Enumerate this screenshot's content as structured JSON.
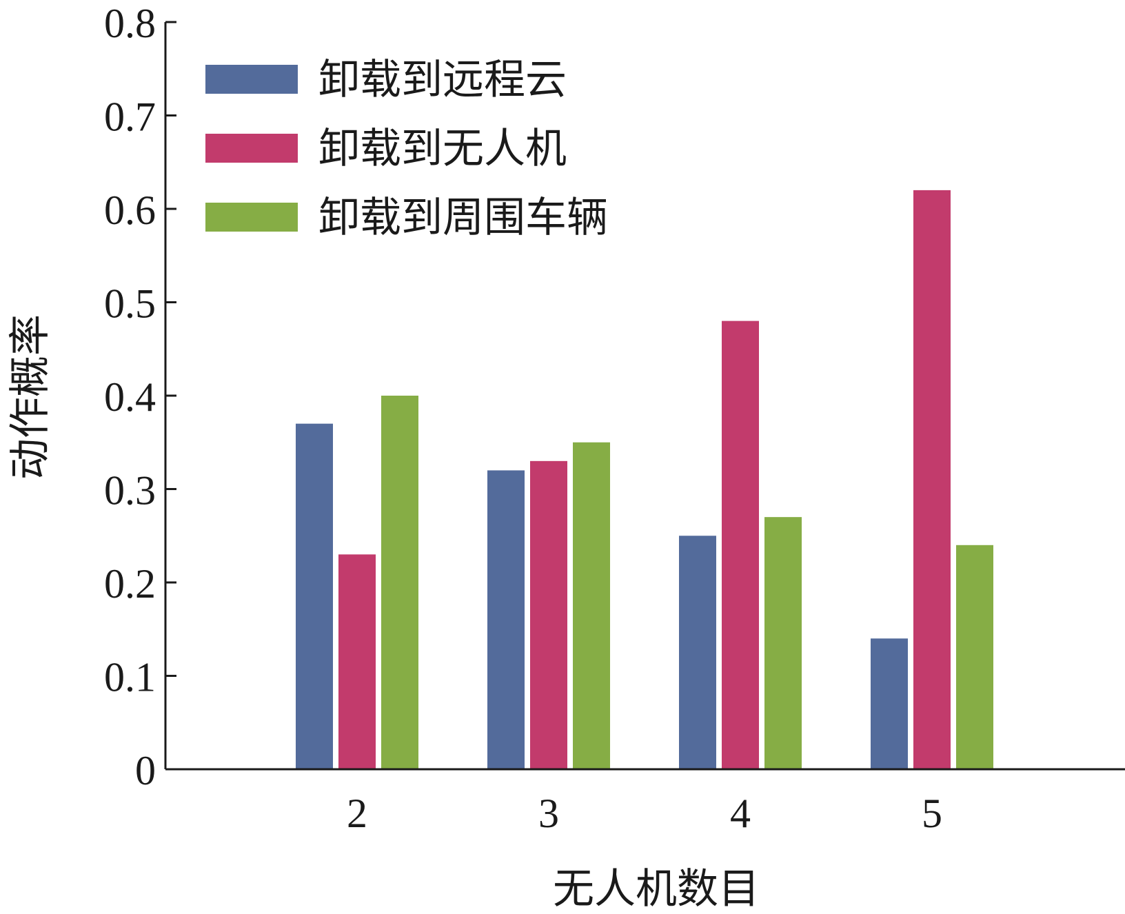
{
  "chart_data": {
    "type": "bar",
    "categories": [
      "2",
      "3",
      "4",
      "5"
    ],
    "series": [
      {
        "name": "卸载到远程云",
        "color": "#536b9b",
        "values": [
          0.37,
          0.32,
          0.25,
          0.14
        ]
      },
      {
        "name": "卸载到无人机",
        "color": "#c23b6c",
        "values": [
          0.23,
          0.33,
          0.48,
          0.62
        ]
      },
      {
        "name": "卸载到周围车辆",
        "color": "#86ad45",
        "values": [
          0.4,
          0.35,
          0.27,
          0.24
        ]
      }
    ],
    "xlabel": "无人机数目",
    "ylabel": "动作概率",
    "ylim": [
      0,
      0.8
    ],
    "yticks": [
      "0",
      "0.1",
      "0.2",
      "0.3",
      "0.4",
      "0.5",
      "0.6",
      "0.7",
      "0.8"
    ],
    "grid": false,
    "legend_position": "top-left"
  }
}
